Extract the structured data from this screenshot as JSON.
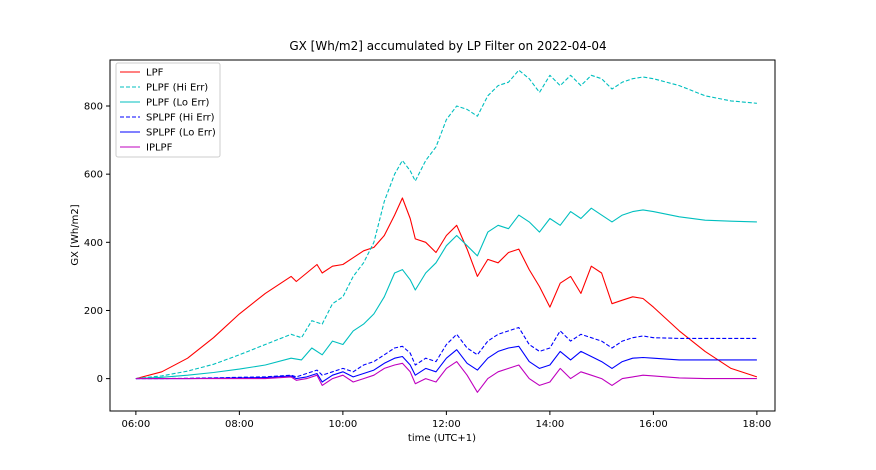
{
  "chart_data": {
    "type": "line",
    "title": "GX [Wh/m2] accumulated by LP Filter on 2022-04-04",
    "xlabel": "time (UTC+1)",
    "ylabel": "GX [Wh/m2]",
    "xlim": [
      5.5,
      18.35
    ],
    "ylim": [
      -95,
      935
    ],
    "xticks": [
      6,
      8,
      10,
      12,
      14,
      16,
      18
    ],
    "xtick_labels": [
      "06:00",
      "08:00",
      "10:00",
      "12:00",
      "14:00",
      "16:00",
      "18:00"
    ],
    "yticks": [
      0,
      200,
      400,
      600,
      800
    ],
    "ytick_labels": [
      "0",
      "200",
      "400",
      "600",
      "800"
    ],
    "grid": false,
    "legend_position": "upper-left",
    "series": [
      {
        "name": "LPF",
        "color": "#ff0000",
        "dash": "solid",
        "x": [
          6.0,
          6.5,
          7.0,
          7.5,
          8.0,
          8.5,
          9.0,
          9.1,
          9.3,
          9.5,
          9.6,
          9.8,
          10.0,
          10.2,
          10.4,
          10.6,
          10.8,
          11.0,
          11.15,
          11.3,
          11.4,
          11.6,
          11.8,
          12.0,
          12.2,
          12.4,
          12.6,
          12.8,
          13.0,
          13.2,
          13.4,
          13.6,
          13.8,
          14.0,
          14.2,
          14.4,
          14.6,
          14.8,
          15.0,
          15.2,
          15.4,
          15.6,
          15.8,
          16.0,
          16.5,
          17.0,
          17.5,
          18.0
        ],
        "values": [
          0,
          20,
          60,
          120,
          190,
          250,
          300,
          285,
          310,
          335,
          310,
          330,
          335,
          355,
          375,
          385,
          420,
          480,
          530,
          470,
          410,
          400,
          370,
          420,
          450,
          380,
          300,
          350,
          340,
          370,
          380,
          320,
          270,
          210,
          280,
          300,
          250,
          330,
          310,
          220,
          230,
          240,
          235,
          210,
          140,
          80,
          30,
          5
        ]
      },
      {
        "name": "PLPF (Hi Err)",
        "color": "#00bfbf",
        "dash": "dashed",
        "x": [
          6.0,
          6.5,
          7.0,
          7.5,
          8.0,
          8.5,
          9.0,
          9.2,
          9.4,
          9.6,
          9.8,
          10.0,
          10.2,
          10.4,
          10.6,
          10.8,
          11.0,
          11.15,
          11.3,
          11.4,
          11.6,
          11.8,
          12.0,
          12.2,
          12.4,
          12.6,
          12.8,
          13.0,
          13.2,
          13.4,
          13.6,
          13.8,
          14.0,
          14.2,
          14.4,
          14.6,
          14.8,
          15.0,
          15.2,
          15.4,
          15.6,
          15.8,
          16.0,
          16.5,
          17.0,
          17.5,
          18.0
        ],
        "values": [
          0,
          8,
          22,
          42,
          70,
          100,
          130,
          120,
          170,
          160,
          220,
          240,
          300,
          340,
          400,
          520,
          600,
          640,
          610,
          580,
          640,
          680,
          760,
          800,
          790,
          770,
          830,
          860,
          870,
          905,
          880,
          840,
          890,
          860,
          890,
          860,
          890,
          880,
          850,
          870,
          880,
          885,
          880,
          860,
          830,
          815,
          808
        ]
      },
      {
        "name": "PLPF (Lo Err)",
        "color": "#00bfbf",
        "dash": "solid",
        "x": [
          6.0,
          6.5,
          7.0,
          7.5,
          8.0,
          8.5,
          9.0,
          9.2,
          9.4,
          9.6,
          9.8,
          10.0,
          10.2,
          10.4,
          10.6,
          10.8,
          11.0,
          11.15,
          11.3,
          11.4,
          11.6,
          11.8,
          12.0,
          12.2,
          12.4,
          12.6,
          12.8,
          13.0,
          13.2,
          13.4,
          13.6,
          13.8,
          14.0,
          14.2,
          14.4,
          14.6,
          14.8,
          15.0,
          15.2,
          15.4,
          15.6,
          15.8,
          16.0,
          16.5,
          17.0,
          17.5,
          18.0
        ],
        "values": [
          0,
          4,
          10,
          18,
          28,
          40,
          60,
          55,
          90,
          70,
          110,
          100,
          140,
          160,
          190,
          240,
          310,
          320,
          290,
          260,
          310,
          340,
          390,
          420,
          390,
          360,
          430,
          450,
          440,
          480,
          460,
          430,
          470,
          450,
          490,
          470,
          500,
          480,
          460,
          480,
          490,
          495,
          490,
          475,
          465,
          462,
          460
        ]
      },
      {
        "name": "SPLPF (Hi Err)",
        "color": "#0000ff",
        "dash": "dashed",
        "x": [
          6.0,
          6.5,
          7.0,
          7.5,
          8.0,
          8.5,
          9.0,
          9.1,
          9.3,
          9.5,
          9.6,
          9.8,
          10.0,
          10.2,
          10.4,
          10.6,
          10.8,
          11.0,
          11.15,
          11.3,
          11.4,
          11.6,
          11.8,
          12.0,
          12.2,
          12.4,
          12.6,
          12.8,
          13.0,
          13.2,
          13.4,
          13.6,
          13.8,
          14.0,
          14.2,
          14.4,
          14.6,
          14.8,
          15.0,
          15.2,
          15.4,
          15.6,
          15.8,
          16.0,
          16.5,
          17.0,
          17.5,
          18.0
        ],
        "values": [
          0,
          0,
          1,
          2,
          4,
          5,
          10,
          5,
          15,
          25,
          10,
          20,
          30,
          20,
          40,
          50,
          70,
          90,
          95,
          75,
          40,
          60,
          50,
          100,
          130,
          90,
          70,
          110,
          130,
          140,
          150,
          100,
          80,
          90,
          140,
          110,
          130,
          120,
          110,
          90,
          110,
          120,
          125,
          120,
          118,
          118,
          118,
          118
        ]
      },
      {
        "name": "SPLPF (Lo Err)",
        "color": "#0000ff",
        "dash": "solid",
        "x": [
          6.0,
          6.5,
          7.0,
          7.5,
          8.0,
          8.5,
          9.0,
          9.1,
          9.3,
          9.5,
          9.6,
          9.8,
          10.0,
          10.2,
          10.4,
          10.6,
          10.8,
          11.0,
          11.15,
          11.3,
          11.4,
          11.6,
          11.8,
          12.0,
          12.2,
          12.4,
          12.6,
          12.8,
          13.0,
          13.2,
          13.4,
          13.6,
          13.8,
          14.0,
          14.2,
          14.4,
          14.6,
          14.8,
          15.0,
          15.2,
          15.4,
          15.6,
          15.8,
          16.0,
          16.5,
          17.0,
          17.5,
          18.0
        ],
        "values": [
          0,
          0,
          0,
          1,
          2,
          3,
          8,
          0,
          5,
          15,
          -10,
          10,
          20,
          5,
          15,
          25,
          45,
          60,
          65,
          40,
          10,
          30,
          20,
          60,
          85,
          45,
          25,
          60,
          80,
          90,
          95,
          50,
          30,
          40,
          80,
          55,
          80,
          65,
          50,
          30,
          50,
          60,
          62,
          60,
          55,
          55,
          55,
          55
        ]
      },
      {
        "name": "IPLPF",
        "color": "#bf00bf",
        "dash": "solid",
        "x": [
          6.0,
          6.5,
          7.0,
          7.5,
          8.0,
          8.5,
          9.0,
          9.1,
          9.3,
          9.5,
          9.6,
          9.8,
          10.0,
          10.2,
          10.4,
          10.6,
          10.8,
          11.0,
          11.15,
          11.3,
          11.4,
          11.6,
          11.8,
          12.0,
          12.2,
          12.4,
          12.6,
          12.8,
          13.0,
          13.2,
          13.4,
          13.6,
          13.8,
          14.0,
          14.2,
          14.4,
          14.6,
          14.8,
          15.0,
          15.2,
          15.4,
          15.6,
          15.8,
          16.0,
          16.5,
          17.0,
          17.5,
          18.0
        ],
        "values": [
          0,
          0,
          0,
          0,
          0,
          0,
          5,
          -5,
          0,
          10,
          -20,
          0,
          10,
          -10,
          0,
          10,
          30,
          40,
          45,
          20,
          -15,
          0,
          -10,
          30,
          50,
          10,
          -40,
          0,
          20,
          30,
          40,
          0,
          -20,
          -10,
          30,
          0,
          20,
          10,
          0,
          -20,
          0,
          5,
          10,
          8,
          2,
          0,
          0,
          0
        ]
      }
    ]
  }
}
